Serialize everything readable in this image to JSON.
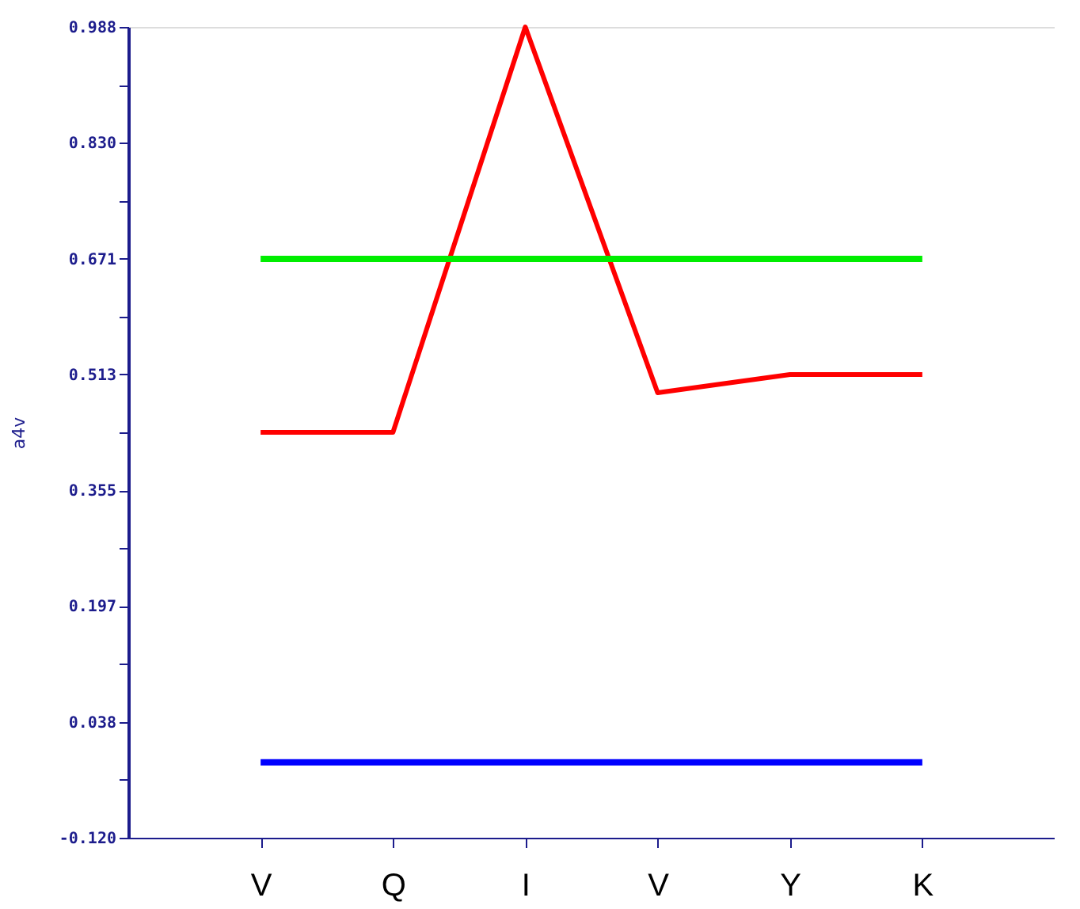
{
  "chart_data": {
    "type": "line",
    "ylabel": "a4v",
    "categories": [
      "V",
      "Q",
      "I",
      "V",
      "Y",
      "K"
    ],
    "series": [
      {
        "color": "#ff0000",
        "values": [
          0.434,
          0.434,
          0.988,
          0.488,
          0.513,
          0.513
        ]
      },
      {
        "color": "#00ee00",
        "values": [
          0.671,
          0.671,
          0.671,
          0.671,
          0.671,
          0.671
        ]
      },
      {
        "color": "#0000ff",
        "values": [
          -0.017,
          -0.017,
          -0.017,
          -0.017,
          -0.017,
          -0.017
        ]
      }
    ],
    "ylim": [
      -0.12,
      0.988
    ],
    "yticks": [
      {
        "value": -0.12,
        "label": "-0.120"
      },
      {
        "value": -0.041,
        "label": null
      },
      {
        "value": 0.038,
        "label": "0.038"
      },
      {
        "value": 0.118,
        "label": null
      },
      {
        "value": 0.197,
        "label": "0.197"
      },
      {
        "value": 0.276,
        "label": null
      },
      {
        "value": 0.355,
        "label": "0.355"
      },
      {
        "value": 0.434,
        "label": null
      },
      {
        "value": 0.513,
        "label": "0.513"
      },
      {
        "value": 0.592,
        "label": null
      },
      {
        "value": 0.671,
        "label": "0.671"
      },
      {
        "value": 0.751,
        "label": null
      },
      {
        "value": 0.83,
        "label": "0.830"
      },
      {
        "value": 0.909,
        "label": null
      },
      {
        "value": 0.988,
        "label": "0.988"
      }
    ],
    "grid": false,
    "legend": false,
    "marker": "none",
    "line_style": "solid"
  }
}
